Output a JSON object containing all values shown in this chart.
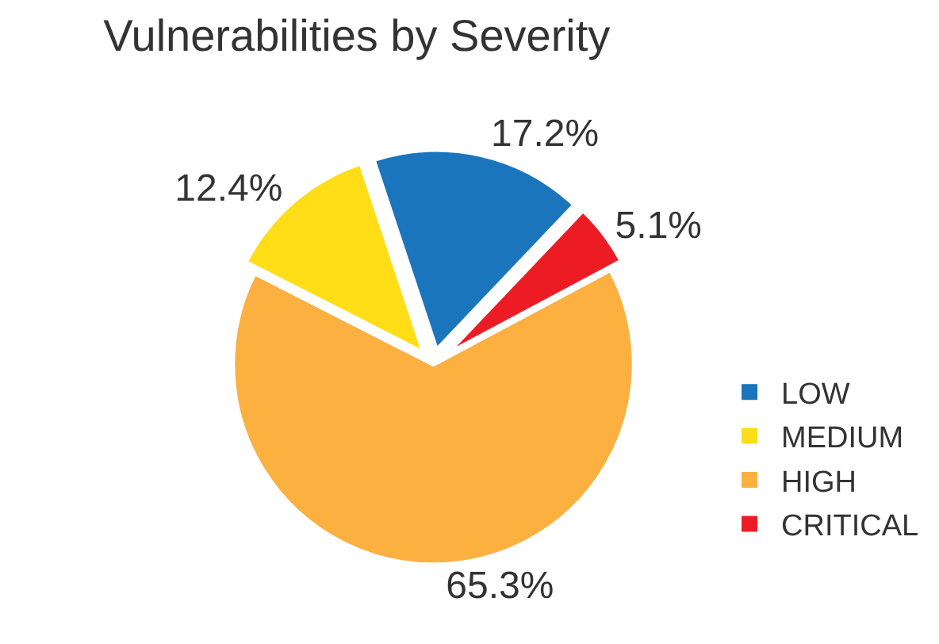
{
  "chart_data": {
    "type": "pie",
    "title": "Vulnerabilities by Severity",
    "categories": [
      "LOW",
      "MEDIUM",
      "HIGH",
      "CRITICAL"
    ],
    "values": [
      17.2,
      12.4,
      65.3,
      5.1
    ],
    "value_labels": [
      "17.2%",
      "12.4%",
      "65.3%",
      "5.1%"
    ],
    "colors": [
      "#1b75bc",
      "#ffde17",
      "#fbb040",
      "#ed1c24"
    ],
    "legend": "bottom right"
  }
}
